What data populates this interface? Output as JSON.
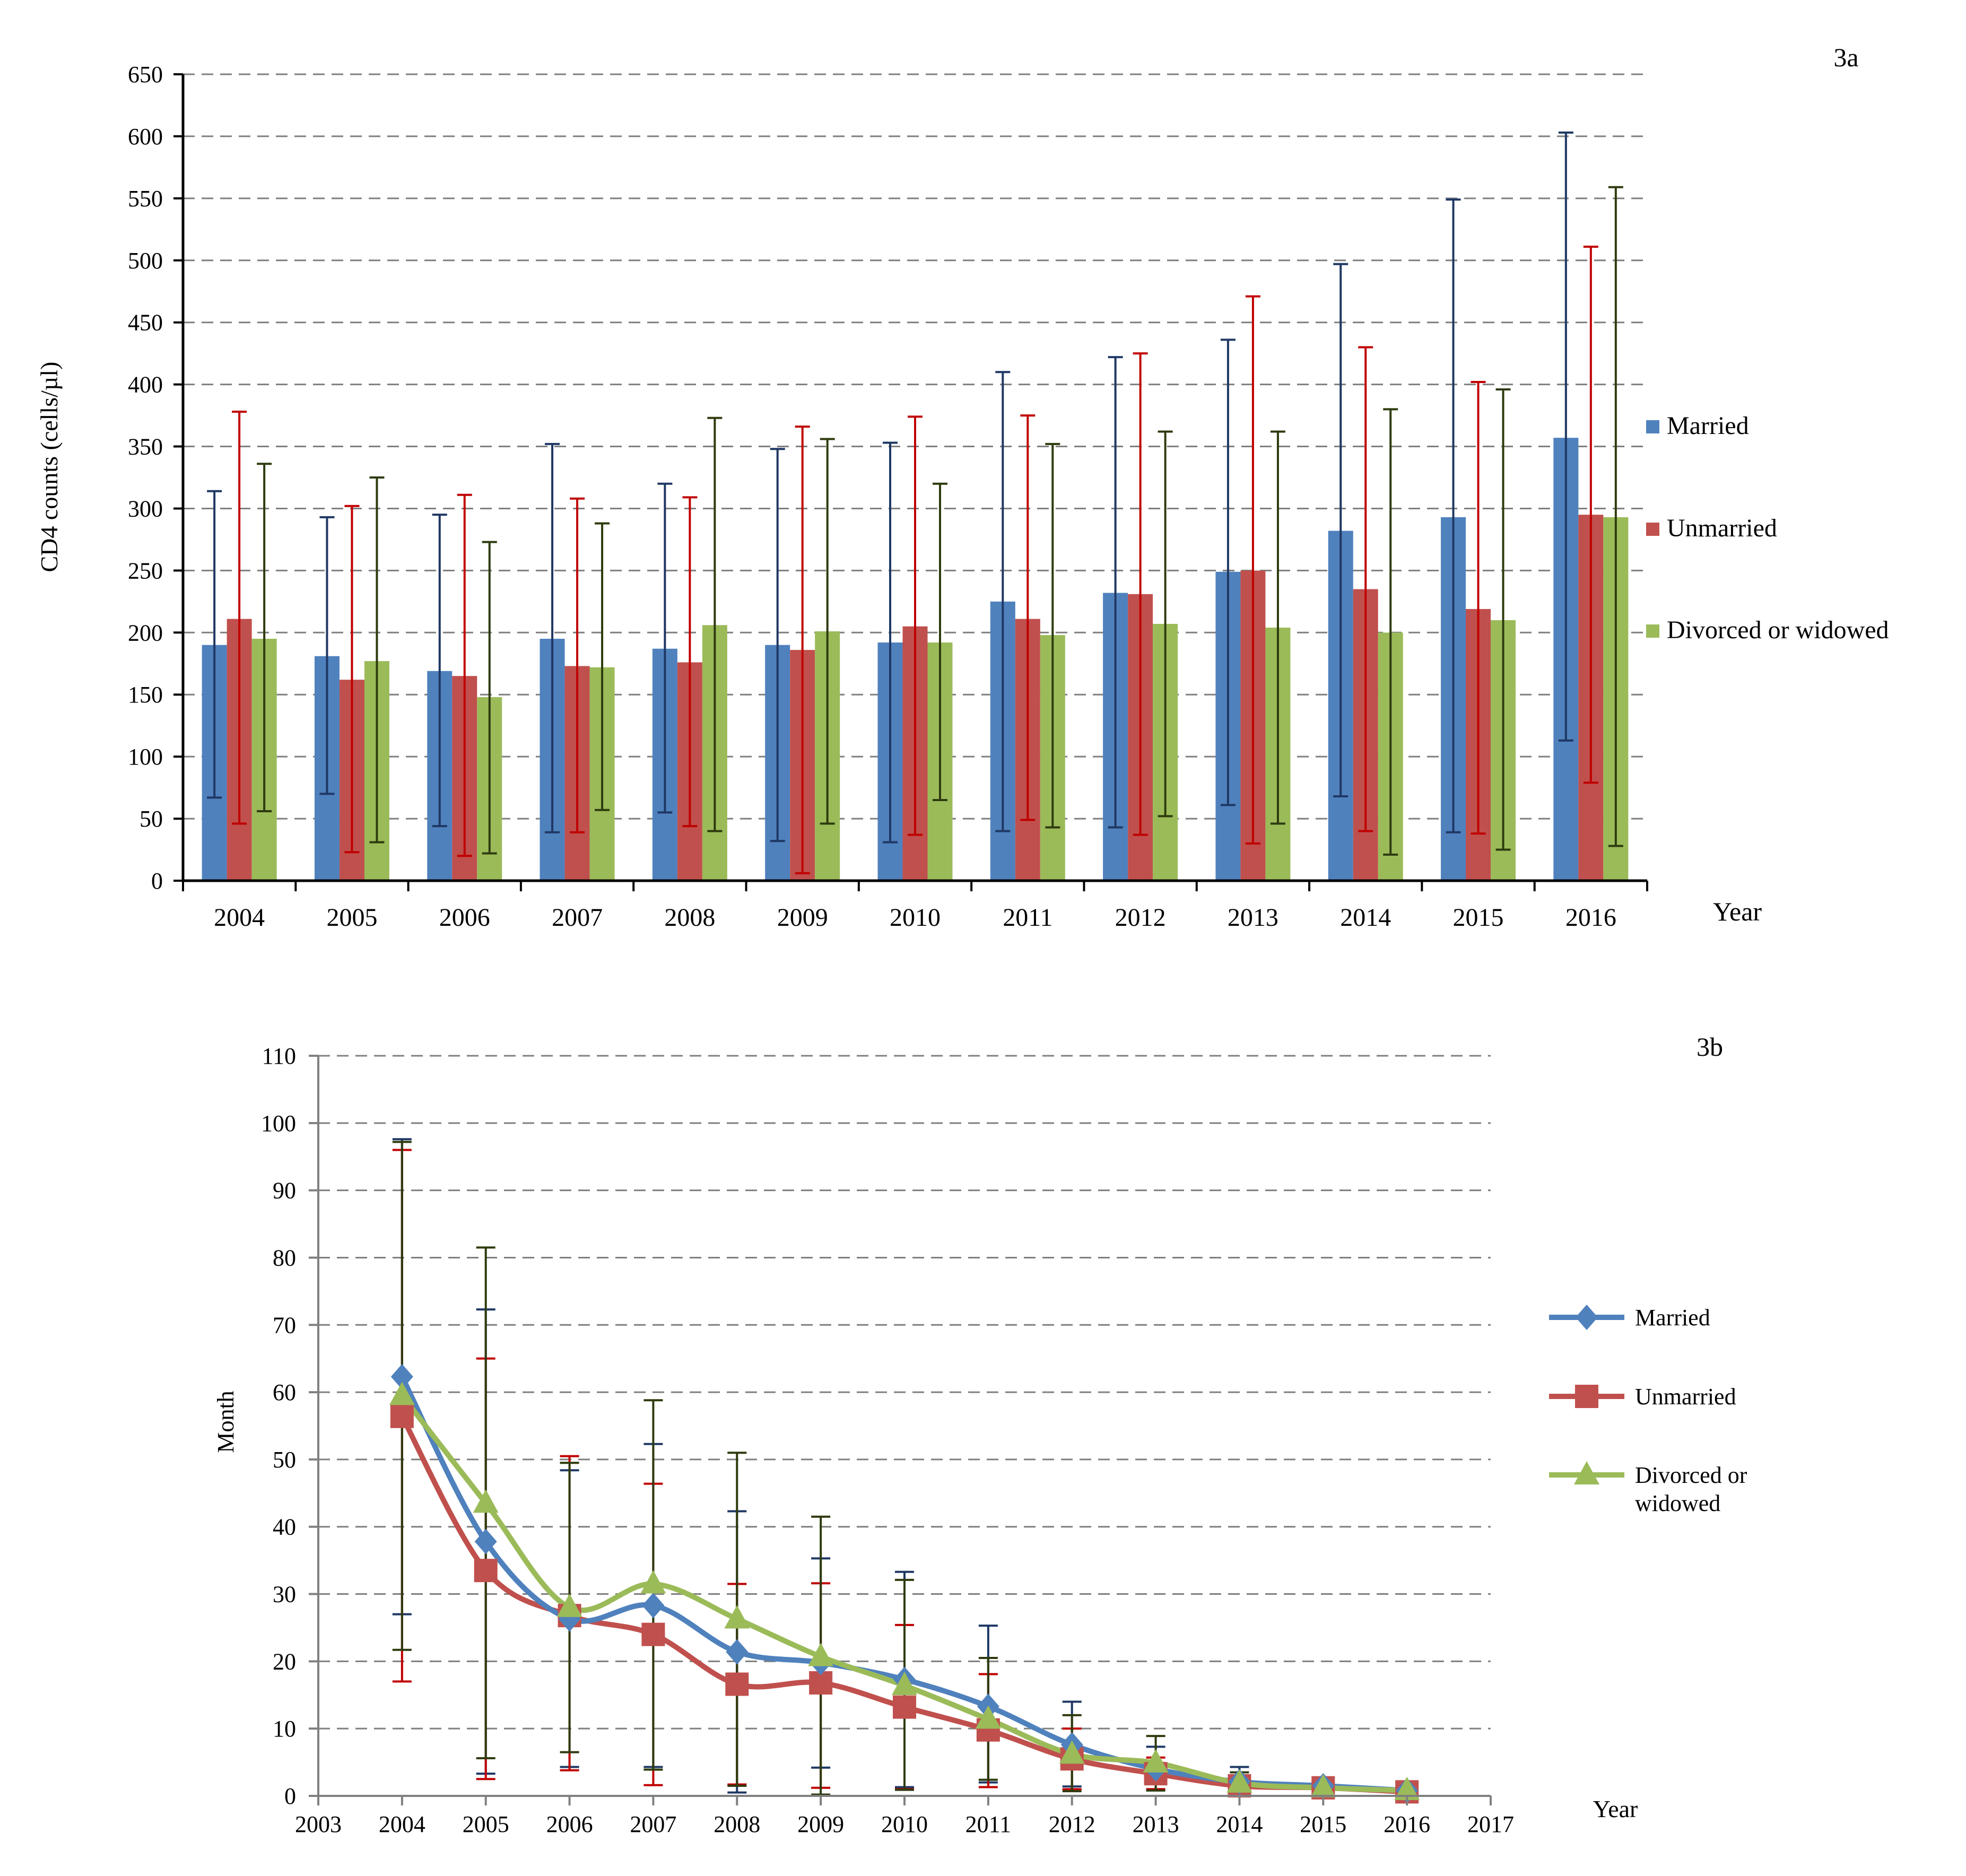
{
  "colors": {
    "married": "#4F81BD",
    "unmarried": "#C0504D",
    "divorced": "#9BBB59",
    "err_married": "#1F3864",
    "err_unmarried": "#C00000",
    "err_divorced": "#2E3B0E",
    "grid": "#7F7F7F",
    "axis": "#000000"
  },
  "chart_data": [
    {
      "type": "bar",
      "panel_label": "3a",
      "title": "",
      "xlabel": "Year",
      "ylabel": "CD4 counts (cells/µl)",
      "ylim": [
        0,
        650
      ],
      "ytick_step": 50,
      "grid": "horizontal dashed",
      "legend_position": "right",
      "categories": [
        "2004",
        "2005",
        "2006",
        "2007",
        "2008",
        "2009",
        "2010",
        "2011",
        "2012",
        "2013",
        "2014",
        "2015",
        "2016"
      ],
      "series": [
        {
          "name": "Married",
          "color_key": "married",
          "values": [
            190,
            181,
            169,
            195,
            187,
            190,
            192,
            225,
            232,
            249,
            282,
            293,
            357
          ],
          "err_low": [
            67,
            70,
            44,
            39,
            55,
            32,
            31,
            40,
            43,
            61,
            68,
            39,
            113
          ],
          "err_high": [
            314,
            293,
            295,
            352,
            320,
            348,
            353,
            410,
            422,
            436,
            497,
            549,
            603
          ]
        },
        {
          "name": "Unmarried",
          "color_key": "unmarried",
          "values": [
            211,
            162,
            165,
            173,
            176,
            186,
            205,
            211,
            231,
            250,
            235,
            219,
            295
          ],
          "err_low": [
            46,
            23,
            20,
            39,
            44,
            6,
            37,
            49,
            37,
            30,
            40,
            38,
            79
          ],
          "err_high": [
            378,
            302,
            311,
            308,
            309,
            366,
            374,
            375,
            425,
            471,
            430,
            402,
            511
          ]
        },
        {
          "name": "Divorced or widowed",
          "color_key": "divorced",
          "values": [
            195,
            177,
            148,
            172,
            206,
            201,
            192,
            198,
            207,
            204,
            200,
            210,
            293
          ],
          "err_low": [
            56,
            31,
            22,
            57,
            40,
            46,
            65,
            43,
            52,
            46,
            21,
            25,
            28
          ],
          "err_high": [
            336,
            325,
            273,
            288,
            373,
            356,
            320,
            352,
            362,
            362,
            380,
            396,
            559
          ]
        }
      ]
    },
    {
      "type": "line",
      "panel_label": "3b",
      "title": "",
      "xlabel": "Year",
      "ylabel": "Month",
      "xlim": [
        2003,
        2017
      ],
      "ylim": [
        0,
        110
      ],
      "ytick_step": 10,
      "grid": "horizontal dashed",
      "legend_position": "right",
      "x": [
        2004,
        2005,
        2006,
        2007,
        2008,
        2009,
        2010,
        2011,
        2012,
        2013,
        2014,
        2015,
        2016
      ],
      "series": [
        {
          "name": "Married",
          "legend_lines": [
            "Married"
          ],
          "color_key": "married",
          "marker": "diamond",
          "values": [
            62.3,
            37.8,
            26.3,
            28.3,
            21.4,
            19.8,
            17.3,
            13.3,
            7.6,
            4.0,
            2.1,
            1.5,
            0.8
          ],
          "err_low": [
            27.0,
            3.3,
            4.3,
            4.3,
            0.5,
            4.2,
            1.3,
            2.0,
            1.4,
            1.0,
            0.2,
            0.3,
            0.1
          ],
          "err_high": [
            97.6,
            72.3,
            48.4,
            52.3,
            42.3,
            35.3,
            33.3,
            25.3,
            14.0,
            7.3,
            4.3,
            2.5,
            1.5
          ]
        },
        {
          "name": "Unmarried",
          "legend_lines": [
            "Unmarried"
          ],
          "color_key": "unmarried",
          "marker": "square",
          "values": [
            56.4,
            33.5,
            26.8,
            24.0,
            16.6,
            16.8,
            13.2,
            9.8,
            5.5,
            3.3,
            1.5,
            1.2,
            0.6
          ],
          "err_low": [
            17.0,
            2.5,
            3.8,
            1.6,
            1.7,
            1.2,
            1.0,
            1.3,
            1.0,
            1.0,
            0.3,
            0.2,
            0.1
          ],
          "err_high": [
            96.0,
            65.0,
            50.5,
            46.4,
            31.5,
            31.6,
            25.4,
            18.1,
            10.0,
            5.7,
            2.7,
            2.2,
            1.1
          ]
        },
        {
          "name": "Divorced or widowed",
          "legend_lines": [
            "Divorced or",
            "widowed"
          ],
          "color_key": "divorced",
          "marker": "triangle",
          "values": [
            59.5,
            43.5,
            28.0,
            31.5,
            26.3,
            20.7,
            16.4,
            11.4,
            6.2,
            4.9,
            1.9,
            1.2,
            0.8
          ],
          "err_low": [
            21.7,
            5.6,
            6.5,
            3.9,
            1.5,
            0.2,
            0.9,
            2.4,
            0.7,
            0.8,
            0.3,
            0.2,
            0.1
          ],
          "err_high": [
            97.2,
            81.5,
            49.5,
            58.8,
            51.0,
            41.5,
            32.1,
            20.5,
            12.0,
            8.9,
            3.5,
            2.2,
            1.4
          ]
        }
      ]
    }
  ]
}
